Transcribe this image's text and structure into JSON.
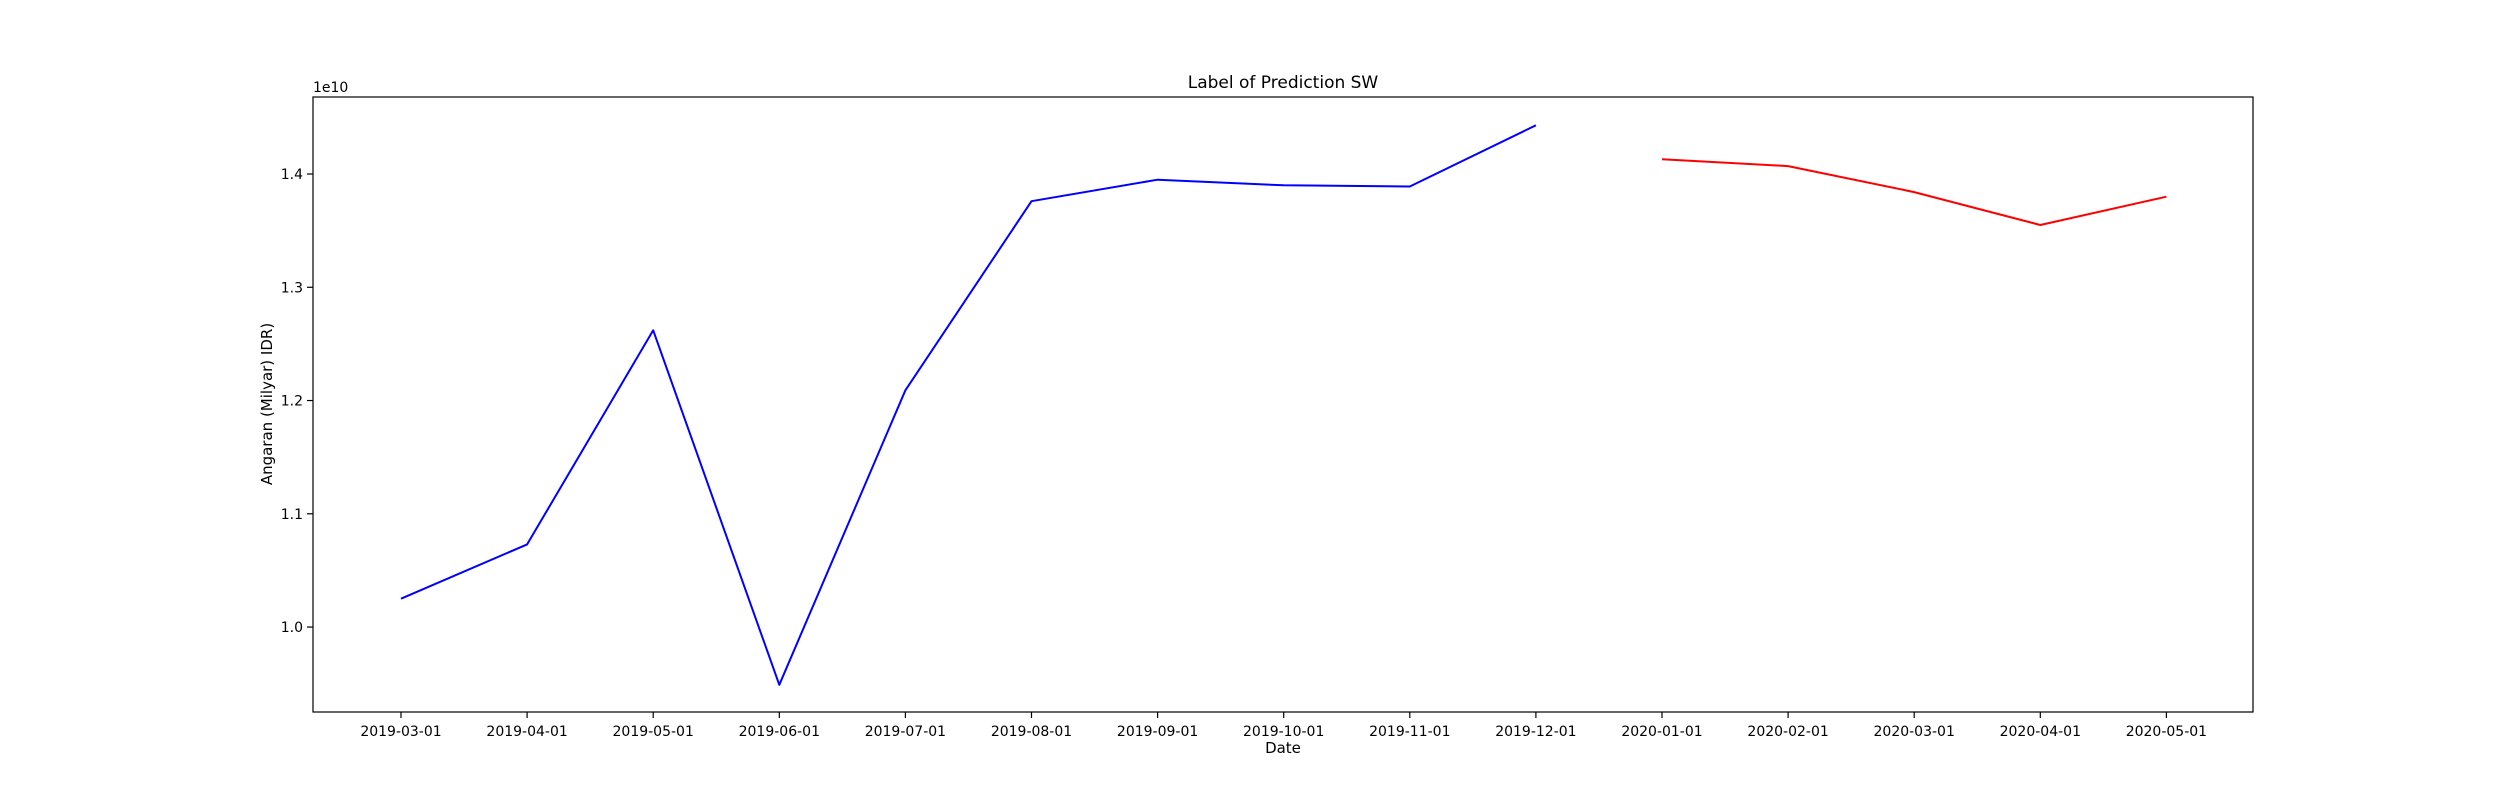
{
  "chart_data": {
    "type": "line",
    "title": "Label of Prediction SW",
    "xlabel": "Date",
    "ylabel": "Angaran (Milyar) IDR)",
    "offset_label": "1e10",
    "y_scale_factor": 10000000000,
    "ylim": [
      9.25,
      14.68
    ],
    "xticks": [
      "2019-03-01",
      "2019-04-01",
      "2019-05-01",
      "2019-06-01",
      "2019-07-01",
      "2019-08-01",
      "2019-09-01",
      "2019-10-01",
      "2019-11-01",
      "2019-12-01",
      "2020-01-01",
      "2020-02-01",
      "2020-03-01",
      "2020-04-01",
      "2020-05-01"
    ],
    "yticks": [
      {
        "value": 10.0,
        "label": "1.0"
      },
      {
        "value": 11.0,
        "label": "1.1"
      },
      {
        "value": 12.0,
        "label": "1.2"
      },
      {
        "value": 13.0,
        "label": "1.3"
      },
      {
        "value": 14.0,
        "label": "1.4"
      }
    ],
    "grid": false,
    "series": [
      {
        "color": "#0000ff",
        "x": [
          "2019-03-01",
          "2019-04-01",
          "2019-05-01",
          "2019-06-01",
          "2019-07-01",
          "2019-08-01",
          "2019-09-01",
          "2019-10-01",
          "2019-11-01",
          "2019-12-01"
        ],
        "values": [
          10.25,
          10.73,
          12.62,
          9.49,
          12.09,
          13.76,
          13.95,
          13.9,
          13.89,
          14.43
        ]
      },
      {
        "color": "#ff0000",
        "x": [
          "2020-01-01",
          "2020-02-01",
          "2020-03-01",
          "2020-04-01",
          "2020-05-01"
        ],
        "values": [
          14.13,
          14.07,
          13.84,
          13.55,
          13.8
        ]
      }
    ]
  }
}
